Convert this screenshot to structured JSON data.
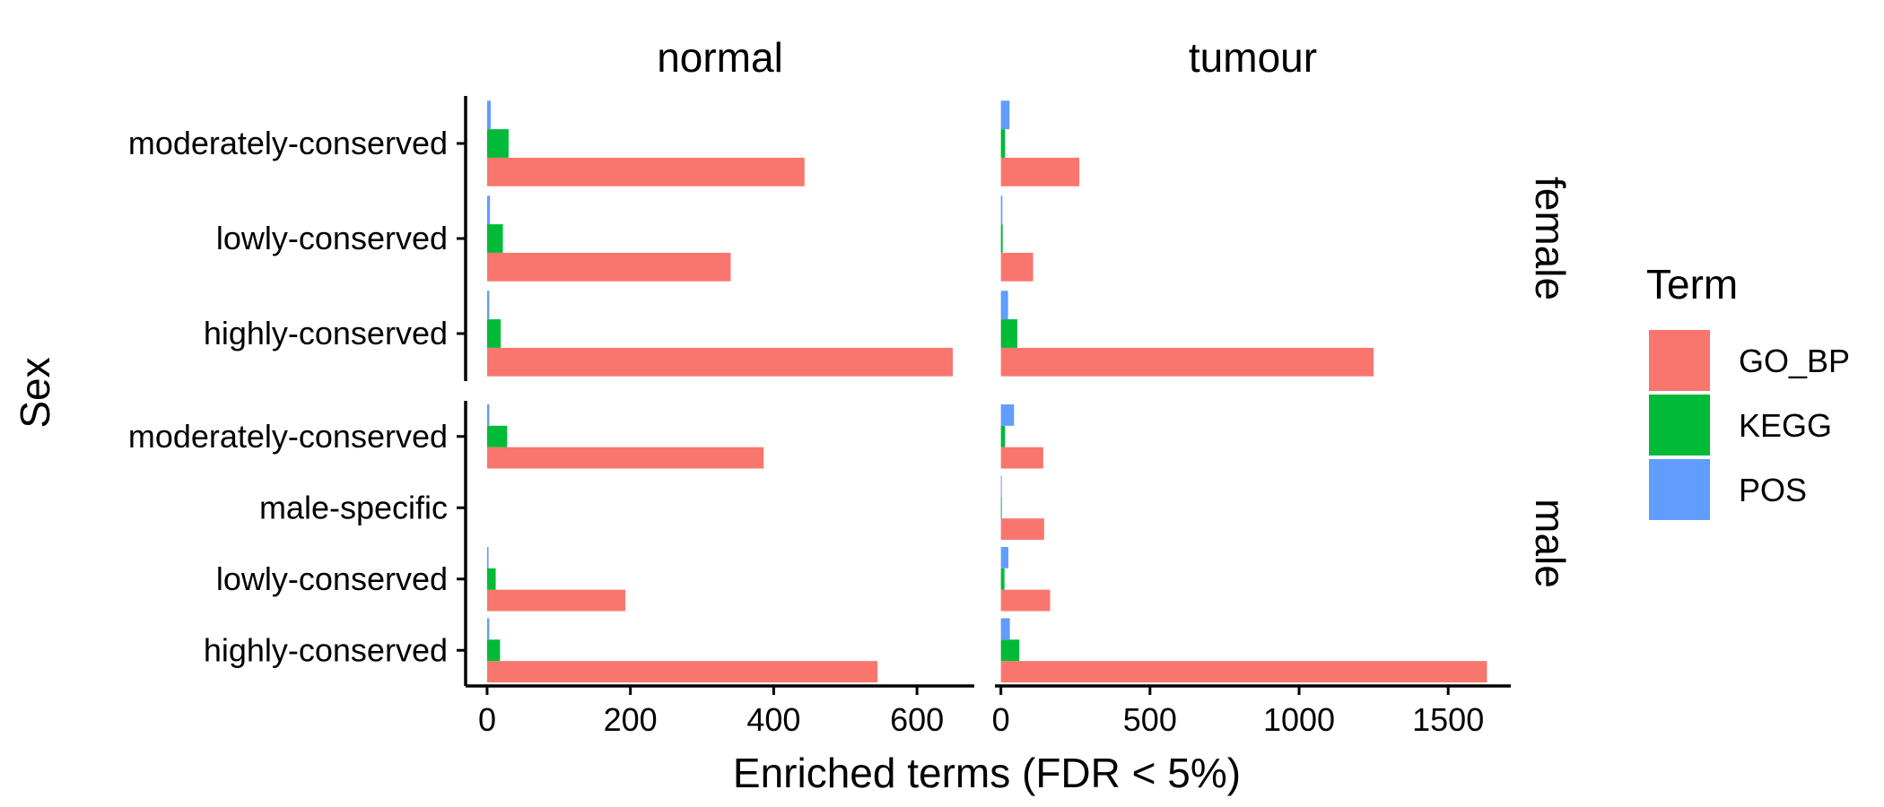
{
  "chart_data": {
    "type": "bar",
    "orientation": "horizontal",
    "xlabel": "Enriched terms (FDR < 5%)",
    "ylabel": "Sex",
    "legend": {
      "title": "Term",
      "placement": "right",
      "entries": [
        {
          "name": "GO_BP",
          "color": "#F8766D"
        },
        {
          "name": "KEGG",
          "color": "#00BA38"
        },
        {
          "name": "POS",
          "color": "#619CFF"
        }
      ]
    },
    "columns": [
      {
        "label": "normal",
        "xlim": [
          -30,
          680
        ],
        "xticks": [
          0,
          200,
          400,
          600
        ]
      },
      {
        "label": "tumour",
        "xlim": [
          -20,
          1710
        ],
        "xticks": [
          0,
          500,
          1000,
          1500
        ]
      }
    ],
    "rows": [
      {
        "label": "female",
        "categories": [
          "moderately-conserved",
          "lowly-conserved",
          "highly-conserved"
        ]
      },
      {
        "label": "male",
        "categories": [
          "moderately-conserved",
          "male-specific",
          "lowly-conserved",
          "highly-conserved"
        ]
      }
    ],
    "panels": [
      {
        "column": "normal",
        "row": "female",
        "bars": [
          {
            "category": "moderately-conserved",
            "GO_BP": 443,
            "KEGG": 30,
            "POS": 5
          },
          {
            "category": "lowly-conserved",
            "GO_BP": 340,
            "KEGG": 22,
            "POS": 4
          },
          {
            "category": "highly-conserved",
            "GO_BP": 650,
            "KEGG": 19,
            "POS": 3
          }
        ]
      },
      {
        "column": "tumour",
        "row": "female",
        "bars": [
          {
            "category": "moderately-conserved",
            "GO_BP": 263,
            "KEGG": 14,
            "POS": 29
          },
          {
            "category": "lowly-conserved",
            "GO_BP": 108,
            "KEGG": 6,
            "POS": 5
          },
          {
            "category": "highly-conserved",
            "GO_BP": 1250,
            "KEGG": 55,
            "POS": 24
          }
        ]
      },
      {
        "column": "normal",
        "row": "male",
        "bars": [
          {
            "category": "moderately-conserved",
            "GO_BP": 386,
            "KEGG": 28,
            "POS": 3
          },
          {
            "category": "male-specific",
            "GO_BP": 0,
            "KEGG": 0,
            "POS": 0
          },
          {
            "category": "lowly-conserved",
            "GO_BP": 193,
            "KEGG": 12,
            "POS": 2
          },
          {
            "category": "highly-conserved",
            "GO_BP": 545,
            "KEGG": 18,
            "POS": 3
          }
        ]
      },
      {
        "column": "tumour",
        "row": "male",
        "bars": [
          {
            "category": "moderately-conserved",
            "GO_BP": 142,
            "KEGG": 14,
            "POS": 44
          },
          {
            "category": "male-specific",
            "GO_BP": 145,
            "KEGG": 3,
            "POS": 3
          },
          {
            "category": "lowly-conserved",
            "GO_BP": 165,
            "KEGG": 12,
            "POS": 25
          },
          {
            "category": "highly-conserved",
            "GO_BP": 1630,
            "KEGG": 62,
            "POS": 30
          }
        ]
      }
    ]
  }
}
